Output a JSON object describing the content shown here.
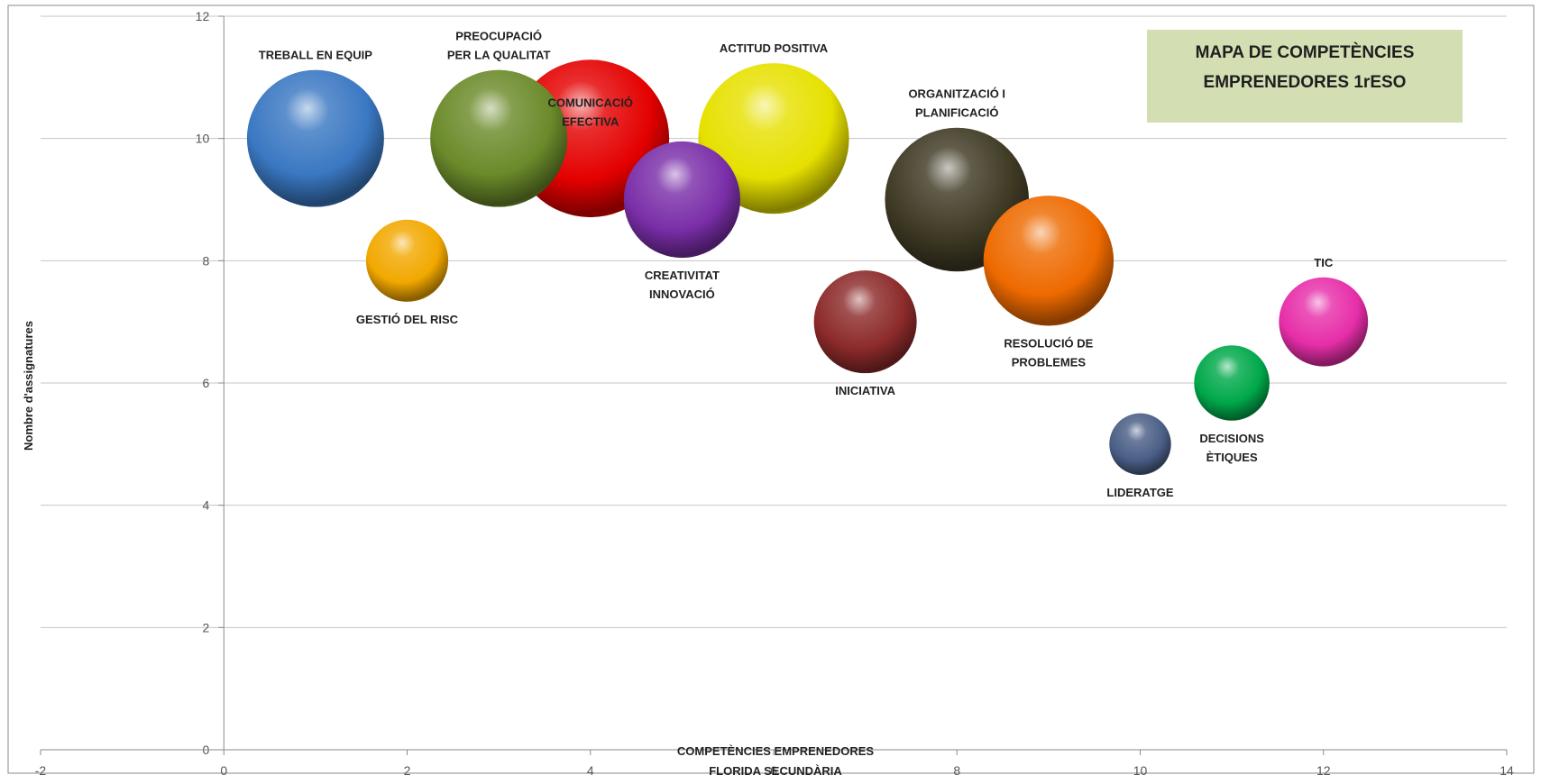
{
  "chart_data": {
    "type": "bubble",
    "title": [
      "MAPA DE COMPETÈNCIES",
      "EMPRENEDORES 1rESO"
    ],
    "xlabel": [
      "COMPETÈNCIES EMPRENEDORES",
      "FLORIDA SECUNDÀRIA"
    ],
    "ylabel": "Nombre d'assignatures",
    "xlim": [
      -2,
      14
    ],
    "ylim": [
      0,
      12
    ],
    "x_ticks": [
      -2,
      0,
      2,
      4,
      6,
      8,
      10,
      12,
      14
    ],
    "y_ticks": [
      0,
      2,
      4,
      6,
      8,
      10,
      12
    ],
    "grid": "horizontal",
    "points": [
      {
        "label": [
          "TREBALL EN EQUIP"
        ],
        "x": 1,
        "y": 10,
        "size": 10,
        "color": "#3a78c2",
        "label_pos": "above"
      },
      {
        "label": [
          "GESTIÓ DEL RISC"
        ],
        "x": 2,
        "y": 8,
        "size": 6,
        "color": "#f2a800",
        "label_pos": "below"
      },
      {
        "label": [
          "PREOCUPACIÓ",
          "PER LA QUALITAT"
        ],
        "x": 3,
        "y": 10,
        "size": 10,
        "color": "#6b8a2a",
        "label_pos": "above"
      },
      {
        "label": [
          "COMUNICACIÓ",
          "EFECTIVA"
        ],
        "x": 4,
        "y": 10,
        "size": 11.5,
        "color": "#e40000",
        "label_pos": "inside"
      },
      {
        "label": [
          "CREATIVITAT",
          "INNOVACIÓ"
        ],
        "x": 5,
        "y": 9,
        "size": 8.5,
        "color": "#7a2ea8",
        "label_pos": "below"
      },
      {
        "label": [
          "ACTITUD POSITIVA"
        ],
        "x": 6,
        "y": 10,
        "size": 11,
        "color": "#e6e000",
        "label_pos": "above"
      },
      {
        "label": [
          "INICIATIVA"
        ],
        "x": 7,
        "y": 7,
        "size": 7.5,
        "color": "#8c2a2a",
        "label_pos": "below"
      },
      {
        "label": [
          "ORGANITZACIÓ I",
          "PLANIFICACIÓ"
        ],
        "x": 8,
        "y": 9,
        "size": 10.5,
        "color": "#3f3a24",
        "label_pos": "above"
      },
      {
        "label": [
          "RESOLUCIÓ DE",
          "PROBLEMES"
        ],
        "x": 9,
        "y": 8,
        "size": 9.5,
        "color": "#ee6a00",
        "label_pos": "below"
      },
      {
        "label": [
          "LIDERATGE"
        ],
        "x": 10,
        "y": 5,
        "size": 4.5,
        "color": "#4a5e86",
        "label_pos": "below"
      },
      {
        "label": [
          "DECISIONS",
          "ÈTIQUES"
        ],
        "x": 11,
        "y": 6,
        "size": 5.5,
        "color": "#00a84a",
        "label_pos": "below"
      },
      {
        "label": [
          "TIC"
        ],
        "x": 12,
        "y": 7,
        "size": 6.5,
        "color": "#e62ea8",
        "label_pos": "above"
      }
    ]
  }
}
